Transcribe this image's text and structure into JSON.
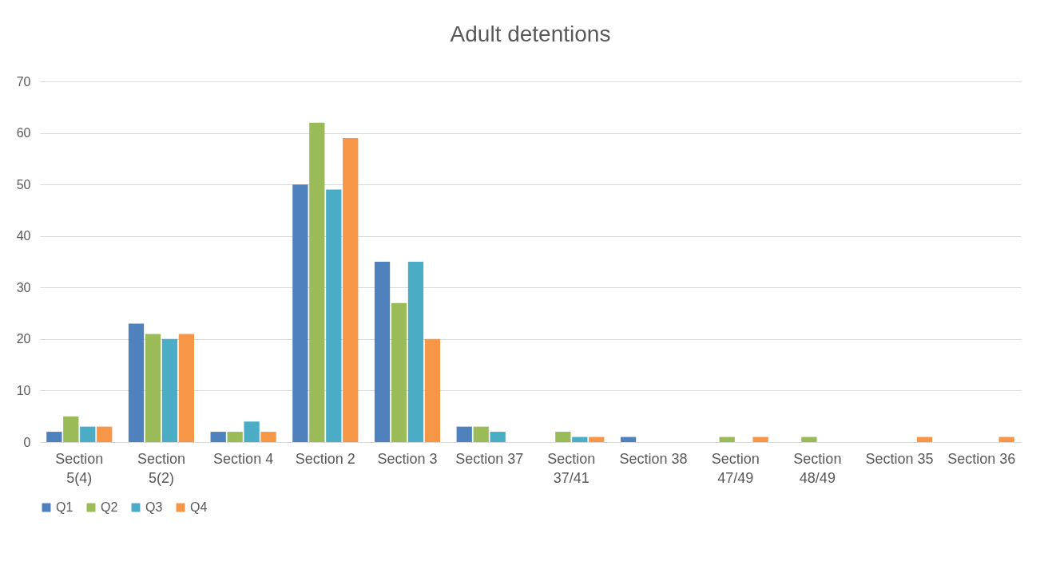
{
  "chart_data": {
    "type": "bar",
    "title": "Adult detentions",
    "categories": [
      "Section 5(4)",
      "Section 5(2)",
      "Section 4",
      "Section 2",
      "Section 3",
      "Section 37",
      "Section 37/41",
      "Section 38",
      "Section 47/49",
      "Section 48/49",
      "Section 35",
      "Section 36"
    ],
    "series": [
      {
        "name": "Q1",
        "color": "#4f81bd",
        "values": [
          2,
          23,
          2,
          50,
          35,
          3,
          0,
          1,
          0,
          0,
          0,
          0
        ]
      },
      {
        "name": "Q2",
        "color": "#9bbb59",
        "values": [
          5,
          21,
          2,
          62,
          27,
          3,
          2,
          0,
          1,
          1,
          0,
          0
        ]
      },
      {
        "name": "Q3",
        "color": "#4bacc6",
        "values": [
          3,
          20,
          4,
          49,
          35,
          2,
          1,
          0,
          0,
          0,
          0,
          0
        ]
      },
      {
        "name": "Q4",
        "color": "#f79646",
        "values": [
          3,
          21,
          2,
          59,
          20,
          0,
          1,
          0,
          1,
          0,
          1,
          1
        ]
      }
    ],
    "ylim": [
      0,
      70
    ],
    "yticks": [
      0,
      10,
      20,
      30,
      40,
      50,
      60,
      70
    ],
    "grid": "y",
    "legend": "bottom"
  }
}
